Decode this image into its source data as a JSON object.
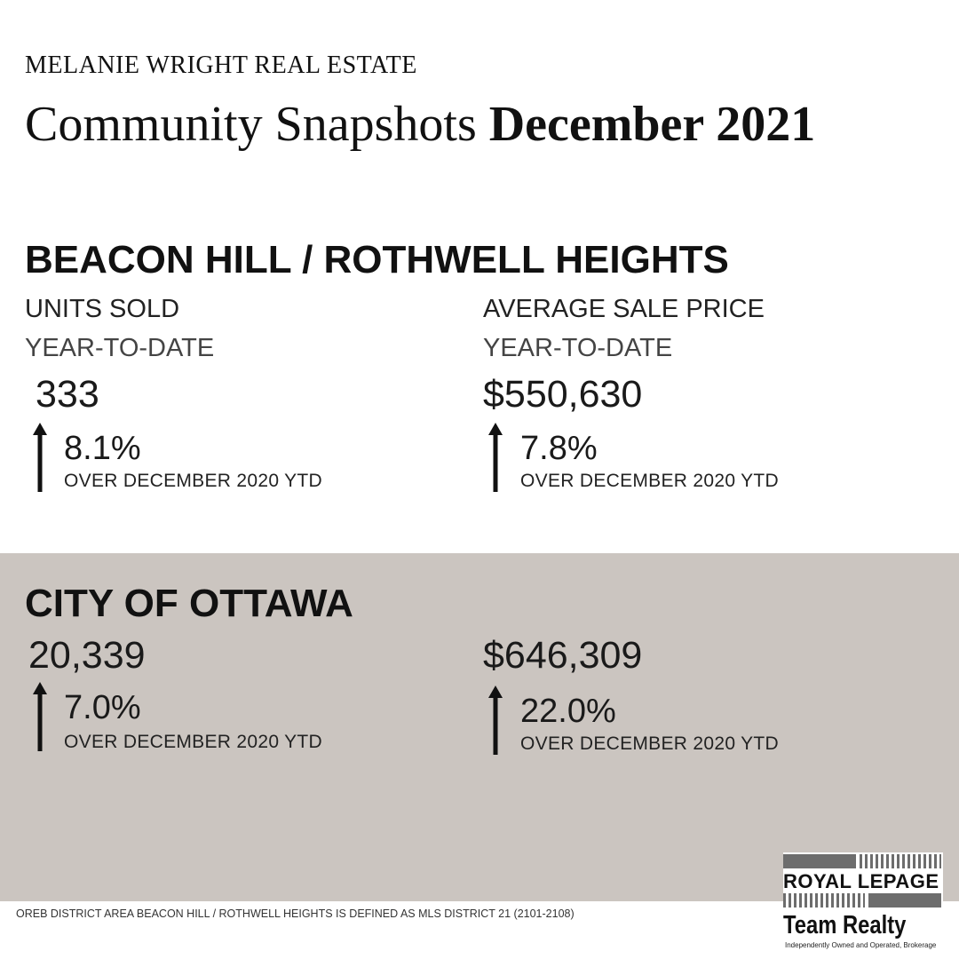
{
  "header": {
    "brand": "MELANIE WRIGHT REAL ESTATE",
    "title_regular": "Community Snapshots ",
    "title_bold": "December 2021"
  },
  "neighbourhood": {
    "title": "BEACON HILL / ROTHWELL HEIGHTS",
    "units": {
      "label": "UNITS SOLD",
      "period": "YEAR-TO-DATE",
      "value": "333",
      "change": "8.1%",
      "direction": "up",
      "comparison": "OVER DECEMBER 2020 YTD"
    },
    "price": {
      "label": "AVERAGE SALE PRICE",
      "period": "YEAR-TO-DATE",
      "value": "$550,630",
      "change": "7.8%",
      "direction": "up",
      "comparison": "OVER DECEMBER 2020 YTD"
    }
  },
  "city": {
    "title": "CITY OF OTTAWA",
    "units": {
      "value": "20,339",
      "change": "7.0%",
      "direction": "up",
      "comparison": "OVER DECEMBER 2020 YTD"
    },
    "price": {
      "value": "$646,309",
      "change": "22.0%",
      "direction": "up",
      "comparison": "OVER DECEMBER 2020 YTD"
    }
  },
  "footer": {
    "note": "OREB DISTRICT AREA BEACON HILL / ROTHWELL HEIGHTS IS DEFINED AS MLS DISTRICT 21 (2101-2108)"
  },
  "logo": {
    "line1": "ROYAL LEPAGE",
    "line2": "Team Realty",
    "tagline": "Independently Owned and Operated, Brokerage"
  },
  "colors": {
    "band": "#cbc5c0",
    "text": "#111111",
    "logo_gray": "#6d6d6d"
  }
}
